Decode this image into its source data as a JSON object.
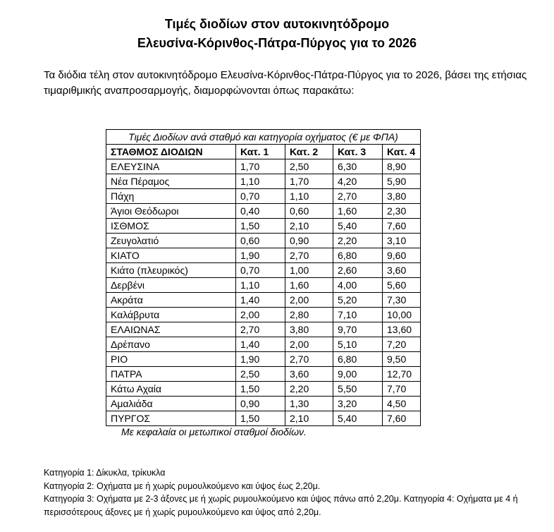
{
  "title_line1": "Τιμές διοδίων στον αυτοκινητόδρομο",
  "title_line2": "Ελευσίνα-Κόρινθος-Πάτρα-Πύργος για το 2026",
  "intro": "Τα διόδια τέλη στον αυτοκινητόδρομο Ελευσίνα-Κόρινθος-Πάτρα-Πύργος για το 2026, βάσει της ετήσιας τιμαριθμικής αναπροσαρμογής, διαμορφώνονται όπως παρακάτω:",
  "table": {
    "caption": "Τιμές Διοδίων ανά σταθμό και κατηγορία οχήματος (€ με ΦΠΑ)",
    "headers": [
      "ΣΤΑΘΜΟΣ ΔΙΟΔΙΩΝ",
      "Κατ. 1",
      "Κατ. 2",
      "Κατ. 3",
      "Κατ. 4"
    ],
    "rows": [
      [
        "ΕΛΕΥΣΙΝΑ",
        "1,70",
        "2,50",
        "6,30",
        "8,90"
      ],
      [
        "Νέα Πέραμος",
        "1,10",
        "1,70",
        "4,20",
        "5,90"
      ],
      [
        "Πάχη",
        "0,70",
        "1,10",
        "2,70",
        "3,80"
      ],
      [
        "Άγιοι Θεόδωροι",
        "0,40",
        "0,60",
        "1,60",
        "2,30"
      ],
      [
        "ΙΣΘΜΟΣ",
        "1,50",
        "2,10",
        "5,40",
        "7,60"
      ],
      [
        "Ζευγολατιό",
        "0,60",
        "0,90",
        "2,20",
        "3,10"
      ],
      [
        "ΚΙΑΤΟ",
        "1,90",
        "2,70",
        "6,80",
        "9,60"
      ],
      [
        "Κιάτο (πλευρικός)",
        "0,70",
        "1,00",
        "2,60",
        "3,60"
      ],
      [
        "Δερβένι",
        "1,10",
        "1,60",
        "4,00",
        "5,60"
      ],
      [
        "Ακράτα",
        "1,40",
        "2,00",
        "5,20",
        "7,30"
      ],
      [
        "Καλάβρυτα",
        "2,00",
        "2,80",
        "7,10",
        "10,00"
      ],
      [
        "ΕΛΑΙΩΝΑΣ",
        "2,70",
        "3,80",
        "9,70",
        "13,60"
      ],
      [
        "Δρέπανο",
        "1,40",
        "2,00",
        "5,10",
        "7,20"
      ],
      [
        "ΡΙΟ",
        "1,90",
        "2,70",
        "6,80",
        "9,50"
      ],
      [
        "ΠΑΤΡΑ",
        "2,50",
        "3,60",
        "9,00",
        "12,70"
      ],
      [
        "Κάτω Αχαία",
        "1,50",
        "2,20",
        "5,50",
        "7,70"
      ],
      [
        "Αμαλιάδα",
        "0,90",
        "1,30",
        "3,20",
        "4,50"
      ],
      [
        "ΠΥΡΓΟΣ",
        "1,50",
        "2,10",
        "5,40",
        "7,60"
      ]
    ]
  },
  "note": "Με κεφαλαία οι μετωπικοί σταθμοί διοδίων.",
  "footer": [
    "Κατηγορία 1: Δίκυκλα, τρίκυκλα",
    "Κατηγορία 2: Οχήματα με ή χωρίς ρυμουλκούμενο και ύψος έως 2,20μ.",
    "Κατηγορία 3: Οχήματα με 2-3 άξονες με ή χωρίς ρυμουλκούμενο και ύψος πάνω από 2,20μ. Κατηγορία 4: Οχήματα με 4 ή περισσότερους άξονες με ή χωρίς ρυμουλκούμενο και ύψος από 2,20μ."
  ]
}
